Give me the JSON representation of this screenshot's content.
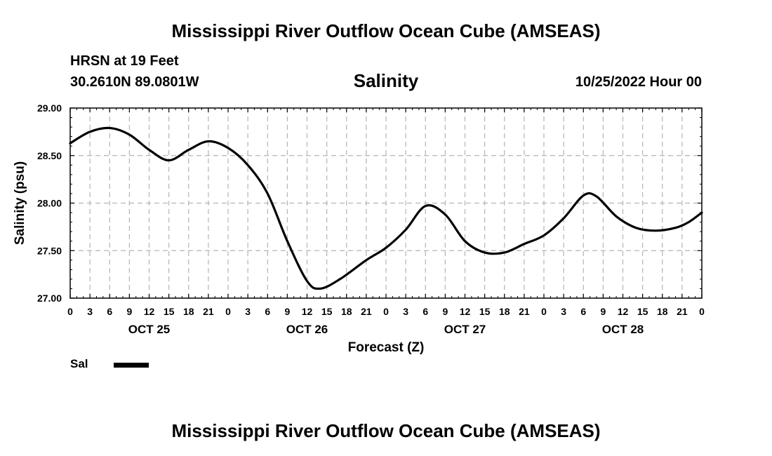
{
  "header": {
    "title": "Mississippi River Outflow Ocean Cube (AMSEAS)",
    "station": "HRSN at 19 Feet",
    "coords": "30.2610N  89.0801W",
    "variable": "Salinity",
    "datetime": "10/25/2022 Hour 00"
  },
  "footer": {
    "title": "Mississippi River Outflow Ocean Cube (AMSEAS)"
  },
  "chart_data": {
    "type": "line",
    "title": "Salinity",
    "xlabel": "Forecast (Z)",
    "ylabel": "Salinity (psu)",
    "xlim": [
      0,
      96
    ],
    "ylim": [
      27.0,
      29.0
    ],
    "y_ticks": [
      "27.00",
      "27.50",
      "28.00",
      "28.50",
      "29.00"
    ],
    "x_tick_labels": [
      "0",
      "3",
      "6",
      "9",
      "12",
      "15",
      "18",
      "21",
      "0",
      "3",
      "6",
      "9",
      "12",
      "15",
      "18",
      "21",
      "0",
      "3",
      "6",
      "9",
      "12",
      "15",
      "18",
      "21",
      "0",
      "3",
      "6",
      "9",
      "12",
      "15",
      "18",
      "21",
      "0"
    ],
    "day_labels": [
      {
        "label": "OCT 25",
        "x": 12
      },
      {
        "label": "OCT 26",
        "x": 36
      },
      {
        "label": "OCT 27",
        "x": 60
      },
      {
        "label": "OCT 28",
        "x": 84
      }
    ],
    "grid": true,
    "legend": "bottom-left",
    "series": [
      {
        "name": "Sal",
        "color": "#000000",
        "x": [
          0,
          3,
          6,
          9,
          12,
          15,
          18,
          21,
          24,
          27,
          30,
          33,
          36,
          38,
          41,
          45,
          48,
          51,
          54,
          57,
          60,
          63,
          66,
          69,
          72,
          75,
          78,
          80,
          83,
          86,
          89,
          92,
          94,
          96
        ],
        "values": [
          28.63,
          28.75,
          28.79,
          28.72,
          28.56,
          28.45,
          28.56,
          28.65,
          28.58,
          28.4,
          28.1,
          27.6,
          27.18,
          27.1,
          27.2,
          27.4,
          27.53,
          27.72,
          27.97,
          27.88,
          27.6,
          27.48,
          27.48,
          27.57,
          27.66,
          27.84,
          28.08,
          28.07,
          27.86,
          27.74,
          27.71,
          27.74,
          27.8,
          27.9
        ]
      }
    ]
  }
}
